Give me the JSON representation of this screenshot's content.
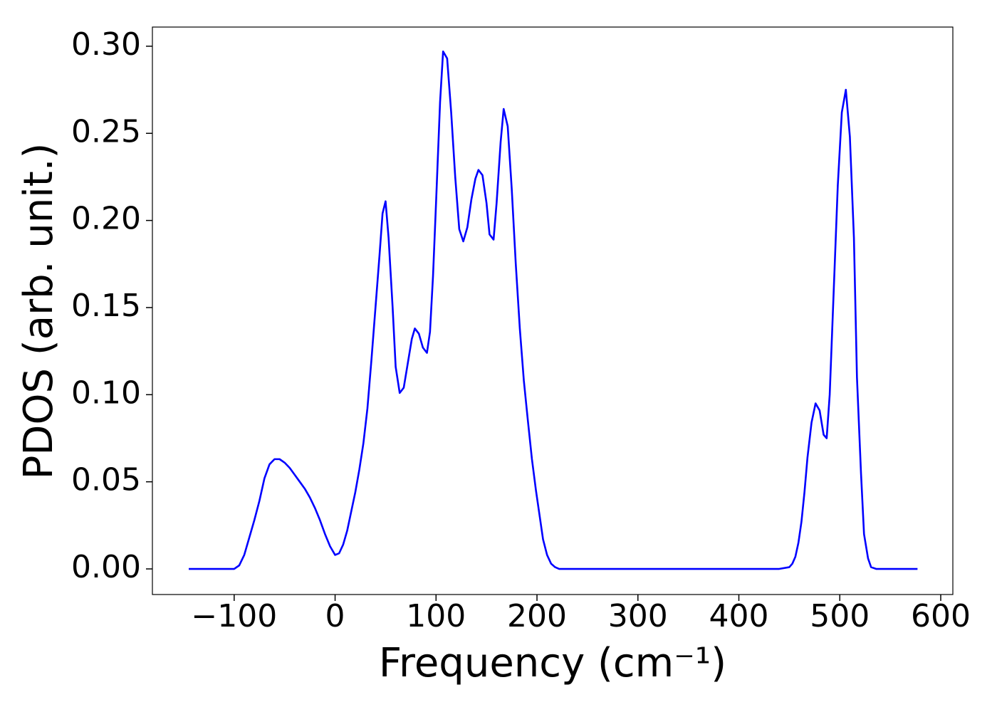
{
  "chart_data": {
    "type": "line",
    "xlabel": "Frequency (cm⁻¹)",
    "ylabel": "PDOS (arb. unit.)",
    "color": "#0000ff",
    "x": [
      -145,
      -100,
      -95,
      -90,
      -85,
      -80,
      -75,
      -70,
      -65,
      -60,
      -55,
      -50,
      -45,
      -40,
      -35,
      -30,
      -25,
      -20,
      -15,
      -10,
      -5,
      0,
      4,
      8,
      12,
      16,
      20,
      24,
      28,
      32,
      36,
      40,
      44,
      47,
      50,
      53,
      57,
      60,
      64,
      68,
      72,
      76,
      79,
      83,
      87,
      91,
      94,
      97,
      100,
      104,
      107,
      111,
      115,
      119,
      123,
      127,
      131,
      135,
      139,
      142,
      146,
      150,
      153,
      157,
      160,
      164,
      167,
      171,
      175,
      179,
      183,
      187,
      191,
      195,
      199,
      203,
      206,
      210,
      214,
      218,
      222,
      440,
      450,
      453,
      456,
      459,
      462,
      465,
      468,
      472,
      476,
      480,
      484,
      487,
      490,
      494,
      498,
      502,
      506,
      510,
      514,
      517,
      521,
      524,
      528,
      531,
      536,
      577
    ],
    "values": [
      0,
      0,
      0.002,
      0.008,
      0.018,
      0.028,
      0.039,
      0.052,
      0.06,
      0.063,
      0.063,
      0.061,
      0.058,
      0.054,
      0.05,
      0.046,
      0.041,
      0.035,
      0.028,
      0.02,
      0.013,
      0.008,
      0.009,
      0.014,
      0.022,
      0.033,
      0.044,
      0.057,
      0.072,
      0.092,
      0.12,
      0.15,
      0.18,
      0.204,
      0.211,
      0.19,
      0.15,
      0.116,
      0.101,
      0.104,
      0.118,
      0.132,
      0.138,
      0.135,
      0.127,
      0.124,
      0.136,
      0.168,
      0.21,
      0.268,
      0.297,
      0.293,
      0.262,
      0.225,
      0.195,
      0.188,
      0.196,
      0.212,
      0.224,
      0.229,
      0.226,
      0.21,
      0.192,
      0.189,
      0.21,
      0.245,
      0.264,
      0.254,
      0.218,
      0.175,
      0.138,
      0.108,
      0.085,
      0.063,
      0.045,
      0.029,
      0.017,
      0.008,
      0.003,
      0.001,
      0,
      0,
      0.001,
      0.003,
      0.007,
      0.015,
      0.027,
      0.044,
      0.064,
      0.084,
      0.095,
      0.091,
      0.077,
      0.075,
      0.1,
      0.16,
      0.22,
      0.262,
      0.275,
      0.248,
      0.19,
      0.11,
      0.055,
      0.02,
      0.006,
      0.001,
      0,
      0
    ],
    "xlim": [
      -181,
      612
    ],
    "ylim": [
      -0.0147,
      0.311
    ],
    "xticks": [
      {
        "value": -100,
        "label": "−100"
      },
      0,
      100,
      200,
      300,
      400,
      500,
      600
    ],
    "yticks": [
      {
        "value": 0,
        "label": "0.00"
      },
      {
        "value": 0.05,
        "label": "0.05"
      },
      {
        "value": 0.1,
        "label": "0.10"
      },
      {
        "value": 0.15,
        "label": "0.15"
      },
      {
        "value": 0.2,
        "label": "0.20"
      },
      {
        "value": 0.25,
        "label": "0.25"
      },
      {
        "value": 0.3,
        "label": "0.30"
      }
    ],
    "grid": false
  }
}
